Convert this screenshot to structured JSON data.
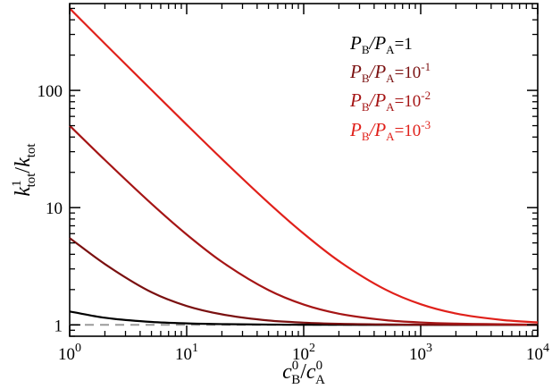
{
  "chart_data": {
    "type": "line",
    "xscale": "log",
    "yscale": "log",
    "xlim": [
      1,
      10000
    ],
    "ylim": [
      0.8,
      550
    ],
    "grid": false,
    "legend_position": "top-right",
    "xlabel": {
      "base": "c",
      "sup1": "0",
      "sub1": "B",
      "slash": "/",
      "base2": "c",
      "sup2": "0",
      "sub2": "A"
    },
    "ylabel": {
      "base": "k",
      "sup1": "1",
      "sub1": "tot",
      "slash": "/",
      "base2": "k",
      "sub2": "tot"
    },
    "x_ticks": [
      {
        "base": "10",
        "exp": "0",
        "value": 1
      },
      {
        "base": "10",
        "exp": "1",
        "value": 10
      },
      {
        "base": "10",
        "exp": "2",
        "value": 100
      },
      {
        "base": "10",
        "exp": "3",
        "value": 1000
      },
      {
        "base": "10",
        "exp": "4",
        "value": 10000
      }
    ],
    "y_ticks": [
      {
        "label": "1",
        "value": 1
      },
      {
        "label": "10",
        "value": 10
      },
      {
        "label": "100",
        "value": 100
      }
    ],
    "reference_line": {
      "y": 1,
      "color": "#9a9a9a",
      "style": "dashed"
    },
    "series": [
      {
        "legend_prefix": "P",
        "legend_sub1": "B",
        "legend_mid": "/P",
        "legend_sub2": "A",
        "legend_eq": "=1",
        "legend_exp": "",
        "color": "#000000",
        "x": [
          1,
          2,
          5,
          10,
          20,
          50,
          100,
          1000,
          10000
        ],
        "y": [
          1.3,
          1.15,
          1.06,
          1.03,
          1.015,
          1.006,
          1.003,
          1.0,
          1.0
        ]
      },
      {
        "legend_prefix": "P",
        "legend_sub1": "B",
        "legend_mid": "/P",
        "legend_sub2": "A",
        "legend_eq": "=10",
        "legend_exp": "-1",
        "color": "#7a1010",
        "x": [
          1,
          2,
          5,
          10,
          20,
          50,
          100,
          200,
          500,
          1000,
          10000
        ],
        "y": [
          5.5,
          3.3,
          1.9,
          1.45,
          1.23,
          1.09,
          1.045,
          1.022,
          1.009,
          1.005,
          1.0
        ]
      },
      {
        "legend_prefix": "P",
        "legend_sub1": "B",
        "legend_mid": "/P",
        "legend_sub2": "A",
        "legend_eq": "=10",
        "legend_exp": "-2",
        "color": "#a51515",
        "x": [
          1,
          2,
          5,
          10,
          20,
          50,
          100,
          200,
          500,
          1000,
          2000,
          10000
        ],
        "y": [
          50,
          25.5,
          10.8,
          5.9,
          3.45,
          1.98,
          1.49,
          1.245,
          1.098,
          1.049,
          1.025,
          1.005
        ]
      },
      {
        "legend_prefix": "P",
        "legend_sub1": "B",
        "legend_mid": "/P",
        "legend_sub2": "A",
        "legend_eq": "=10",
        "legend_exp": "-3",
        "color": "#e0201a",
        "x": [
          1,
          2,
          5,
          10,
          20,
          50,
          100,
          200,
          500,
          1000,
          2000,
          5000,
          10000
        ],
        "y": [
          500,
          250,
          101,
          51,
          26,
          11,
          6,
          3.5,
          2,
          1.5,
          1.25,
          1.1,
          1.05
        ]
      }
    ]
  }
}
